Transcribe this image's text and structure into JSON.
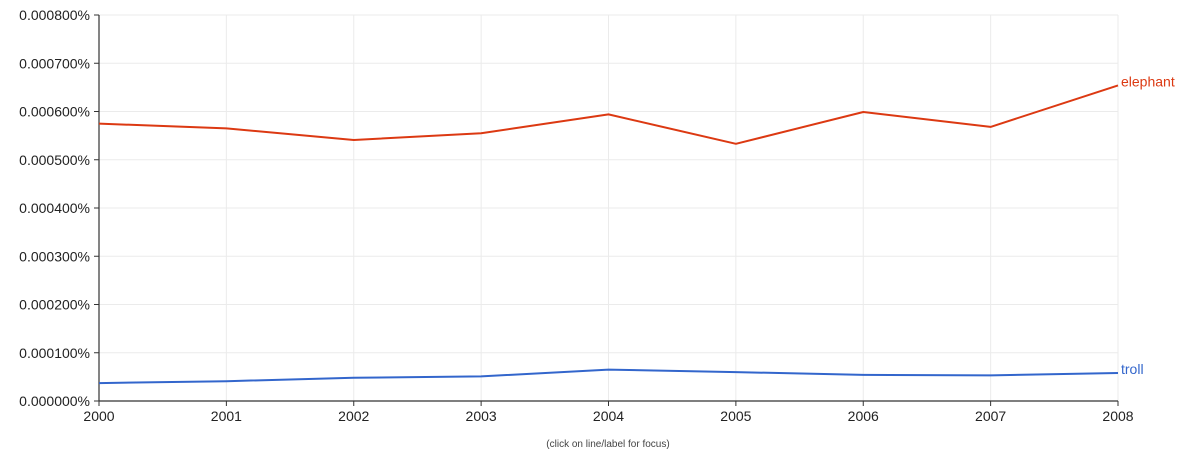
{
  "chart_data": {
    "type": "line",
    "title": "",
    "xlabel": "",
    "ylabel": "",
    "x": [
      "2000",
      "2001",
      "2002",
      "2003",
      "2004",
      "2005",
      "2006",
      "2007",
      "2008"
    ],
    "ylim": [
      0,
      0.0008
    ],
    "y_ticks": [
      "0.000000%",
      "0.000100%",
      "0.000200%",
      "0.000300%",
      "0.000400%",
      "0.000500%",
      "0.000600%",
      "0.000700%",
      "0.000800%"
    ],
    "grid": true,
    "legend": "end-of-line labels",
    "series": [
      {
        "name": "elephant",
        "color": "#dc3912",
        "values": [
          0.000575,
          0.000565,
          0.000541,
          0.000555,
          0.000594,
          0.000533,
          0.000599,
          0.000568,
          0.000654
        ]
      },
      {
        "name": "troll",
        "color": "#3366cc",
        "values": [
          3.7e-05,
          4.1e-05,
          4.8e-05,
          5.1e-05,
          6.5e-05,
          6e-05,
          5.4e-05,
          5.3e-05,
          5.8e-05
        ]
      }
    ],
    "note": "(click on line/label for focus)"
  }
}
